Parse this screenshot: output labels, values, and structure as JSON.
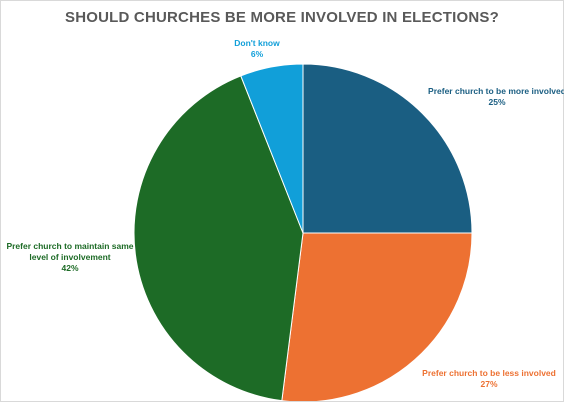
{
  "chart_data": {
    "type": "pie",
    "title": "SHOULD CHURCHES BE MORE INVOLVED IN ELECTIONS?",
    "slices": [
      {
        "label": "Prefer church to be more involved",
        "label_lines": [
          "Prefer church to be more involved"
        ],
        "value": 25,
        "value_label": "25%",
        "color": "#1a5e82"
      },
      {
        "label": "Prefer church to be less involved",
        "label_lines": [
          "Prefer church to be less involved"
        ],
        "value": 27,
        "value_label": "27%",
        "color": "#ed7132"
      },
      {
        "label": "Prefer church to maintain same level of involvement",
        "label_lines": [
          "Prefer church to maintain same",
          "level of involvement"
        ],
        "value": 42,
        "value_label": "42%",
        "color": "#1d6b26"
      },
      {
        "label": "Don't know",
        "label_lines": [
          "Don't know"
        ],
        "value": 6,
        "value_label": "6%",
        "color": "#119fd9"
      }
    ],
    "start_angle_deg": 0,
    "direction": "clockwise",
    "legend": "none",
    "label_position": "outside"
  }
}
